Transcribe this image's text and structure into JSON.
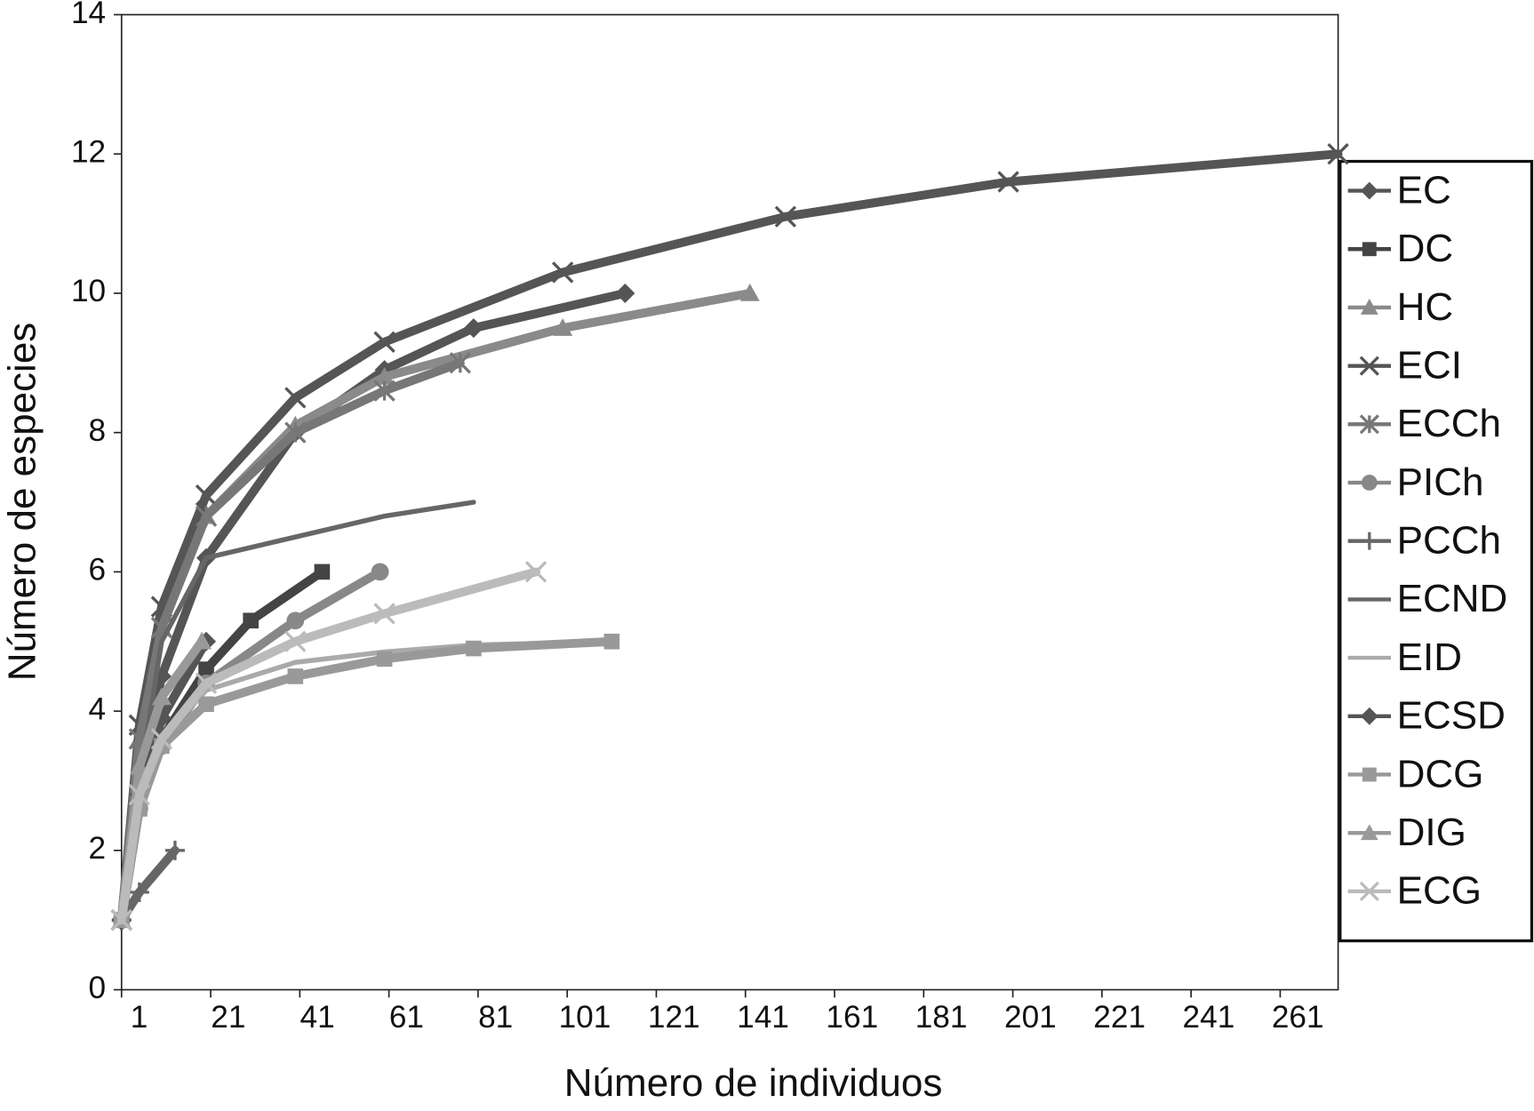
{
  "chart_data": {
    "type": "line",
    "x_label": "Número de individuos",
    "y_label": "Número de especies",
    "xlim": [
      1,
      274
    ],
    "xticks": [
      1,
      21,
      41,
      61,
      81,
      101,
      121,
      141,
      161,
      181,
      201,
      221,
      241,
      261
    ],
    "ylim": [
      0,
      14
    ],
    "yticks": [
      0,
      2,
      4,
      6,
      8,
      10,
      12,
      14
    ],
    "legend": "right",
    "series": [
      {
        "name": "EC",
        "color": "#555555",
        "marker": "diamond",
        "x": [
          1,
          5,
          10,
          20,
          40,
          60,
          80,
          114
        ],
        "values": [
          1,
          3,
          4.5,
          6.2,
          8,
          8.9,
          9.5,
          10
        ]
      },
      {
        "name": "DC",
        "color": "#444444",
        "marker": "square",
        "x": [
          1,
          5,
          10,
          20,
          30,
          46
        ],
        "values": [
          1,
          2.6,
          3.6,
          4.6,
          5.3,
          6
        ]
      },
      {
        "name": "HC",
        "color": "#8a8a8a",
        "marker": "triangle",
        "x": [
          1,
          5,
          10,
          20,
          40,
          60,
          100,
          142
        ],
        "values": [
          1,
          3.6,
          5.2,
          6.8,
          8.1,
          8.8,
          9.5,
          10
        ]
      },
      {
        "name": "ECI",
        "color": "#555555",
        "marker": "x",
        "x": [
          1,
          5,
          10,
          20,
          40,
          60,
          100,
          150,
          200,
          274
        ],
        "values": [
          1,
          3.8,
          5.5,
          7.1,
          8.5,
          9.3,
          10.3,
          11.1,
          11.6,
          12
        ]
      },
      {
        "name": "ECCh",
        "color": "#777777",
        "marker": "star",
        "x": [
          1,
          5,
          10,
          20,
          40,
          60,
          77
        ],
        "values": [
          1,
          3.6,
          5.2,
          6.8,
          8,
          8.6,
          9
        ]
      },
      {
        "name": "PICh",
        "color": "#888888",
        "marker": "circle",
        "x": [
          1,
          5,
          10,
          20,
          40,
          59
        ],
        "values": [
          1,
          2.6,
          3.5,
          4.4,
          5.3,
          6
        ]
      },
      {
        "name": "PCCh",
        "color": "#666666",
        "marker": "plus",
        "x": [
          1,
          5,
          13
        ],
        "values": [
          1,
          1.4,
          2
        ]
      },
      {
        "name": "ECND",
        "color": "#666666",
        "marker": "none",
        "x": [
          1,
          5,
          10,
          20,
          40,
          60,
          80
        ],
        "values": [
          1,
          3,
          5,
          6.2,
          6.5,
          6.8,
          7
        ]
      },
      {
        "name": "EID",
        "color": "#aaaaaa",
        "marker": "none",
        "x": [
          1,
          5,
          10,
          20,
          40,
          60,
          80,
          111
        ],
        "values": [
          1,
          2.8,
          3.6,
          4.3,
          4.7,
          4.85,
          4.95,
          5
        ]
      },
      {
        "name": "ECSD",
        "color": "#555555",
        "marker": "diamond",
        "x": [
          1,
          5,
          10,
          20
        ],
        "values": [
          1,
          2.8,
          3.9,
          5
        ]
      },
      {
        "name": "DCG",
        "color": "#999999",
        "marker": "square",
        "x": [
          1,
          5,
          10,
          20,
          40,
          60,
          80,
          111
        ],
        "values": [
          1,
          2.6,
          3.5,
          4.1,
          4.5,
          4.75,
          4.9,
          5
        ]
      },
      {
        "name": "DIG",
        "color": "#999999",
        "marker": "triangle",
        "x": [
          1,
          5,
          10,
          19
        ],
        "values": [
          1,
          3.2,
          4.2,
          5
        ]
      },
      {
        "name": "ECG",
        "color": "#bbbbbb",
        "marker": "x",
        "x": [
          1,
          5,
          10,
          20,
          40,
          60,
          94
        ],
        "values": [
          1,
          2.8,
          3.6,
          4.4,
          5,
          5.4,
          6
        ]
      }
    ]
  }
}
